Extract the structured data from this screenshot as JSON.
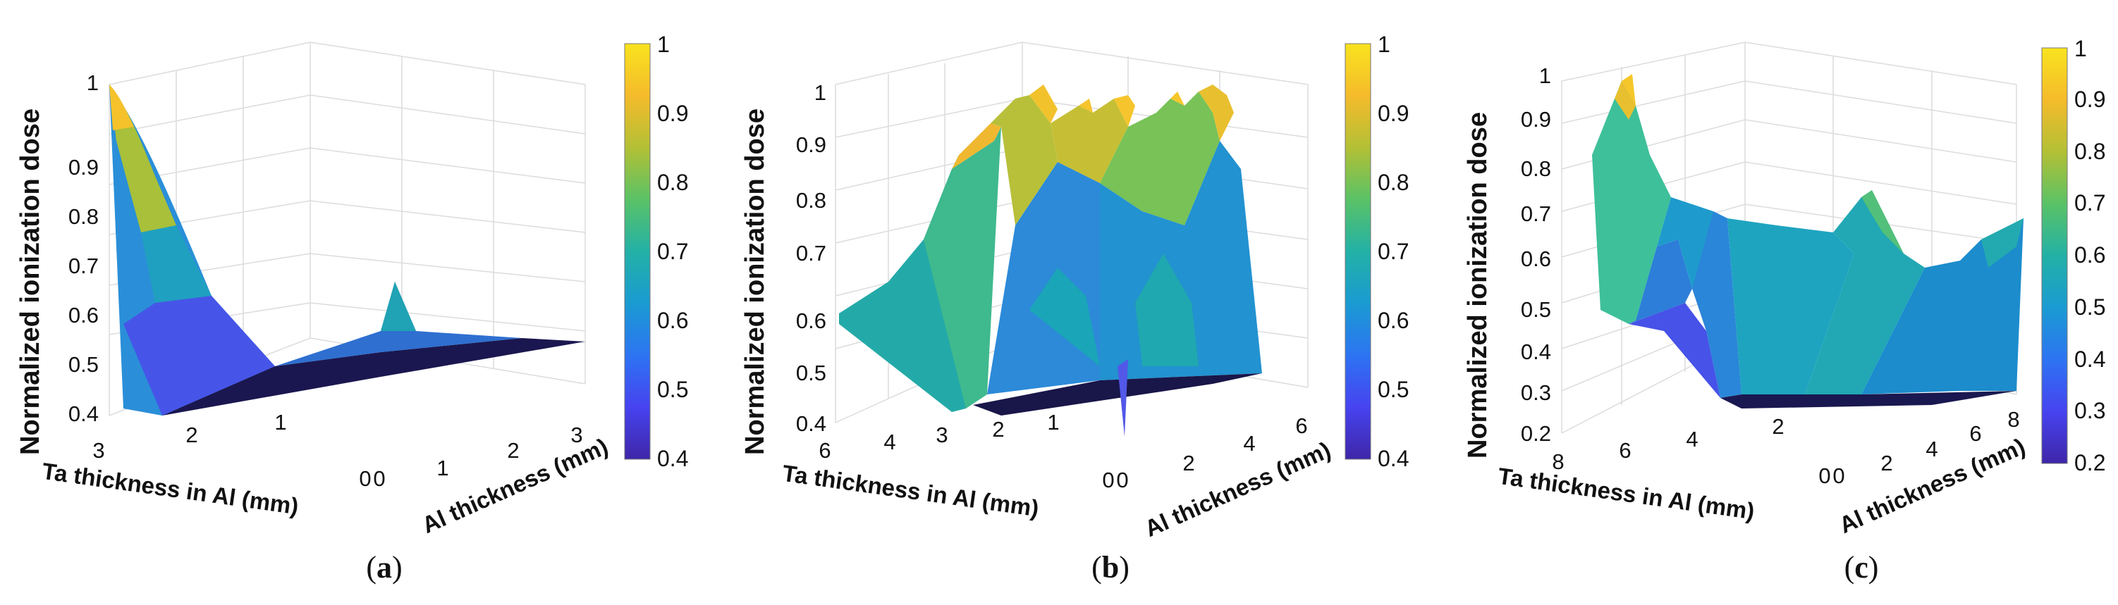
{
  "colors": {
    "colormap": [
      "#3e26a8",
      "#4743f0",
      "#2d74f2",
      "#1a9bd2",
      "#23b1a6",
      "#5ac266",
      "#b3c035",
      "#f5bb2b",
      "#f9e31e"
    ],
    "grid": "#dcdcdc",
    "axis": "#9a9a9a"
  },
  "chart_data": [
    {
      "type": "surface3d",
      "panel_label": "a",
      "zlabel": "Normalized ionization dose",
      "xlabel": "Ta thickness in Al (mm)",
      "ylabel": "Al thickness (mm)",
      "ztick_labels": [
        "0.4",
        "0.5",
        "0.6",
        "0.7",
        "0.8",
        "0.9",
        "1"
      ],
      "xtick_labels": [
        "3",
        "2",
        "1",
        "0"
      ],
      "ytick_labels": [
        "0",
        "1",
        "2",
        "3"
      ],
      "colorbar_labels": [
        "0.4",
        "0.5",
        "0.6",
        "0.7",
        "0.8",
        "0.9",
        "1"
      ],
      "zlim": [
        0.4,
        1
      ],
      "clim": [
        0.4,
        1
      ],
      "surface_features": [
        {
          "at": [
            3,
            0
          ],
          "z": 1.0
        },
        {
          "at": [
            0,
            1.3
          ],
          "z": 0.59
        },
        {
          "floor": 0.41
        }
      ]
    },
    {
      "type": "surface3d",
      "panel_label": "b",
      "zlabel": "Normalized ionization dose",
      "xlabel": "Ta thickness in Al (mm)",
      "ylabel": "Al thickness (mm)",
      "ztick_labels": [
        "0.4",
        "0.5",
        "0.6",
        "0.7",
        "0.8",
        "0.9",
        "1"
      ],
      "xtick_labels": [
        "6",
        "4",
        "3",
        "2",
        "1",
        "0"
      ],
      "ytick_labels": [
        "0",
        "2",
        "4",
        "6"
      ],
      "colorbar_labels": [
        "0.4",
        "0.5",
        "0.6",
        "0.7",
        "0.8",
        "0.9",
        "1"
      ],
      "zlim": [
        0.4,
        1
      ],
      "clim": [
        0.4,
        1
      ],
      "surface_features": [
        {
          "at": [
            6,
            0
          ],
          "z": 0.6
        },
        {
          "ridge_peaks": [
            0.91,
            0.93,
            0.92,
            0.95,
            0.99
          ]
        },
        {
          "floor": 0.42
        }
      ]
    },
    {
      "type": "surface3d",
      "panel_label": "c",
      "zlabel": "Normalized ionization dose",
      "xlabel": "Ta thickness in Al (mm)",
      "ylabel": "Al thickness (mm)",
      "ztick_labels": [
        "0.2",
        "0.3",
        "0.4",
        "0.5",
        "0.6",
        "0.7",
        "0.8",
        "0.9",
        "1"
      ],
      "xtick_labels": [
        "8",
        "6",
        "4",
        "2",
        "0"
      ],
      "ytick_labels": [
        "0",
        "2",
        "4",
        "6",
        "8"
      ],
      "colorbar_labels": [
        "0.2",
        "0.3",
        "0.4",
        "0.5",
        "0.6",
        "0.7",
        "0.8",
        "0.9",
        "1"
      ],
      "zlim": [
        0.2,
        1
      ],
      "clim": [
        0.2,
        1
      ],
      "surface_features": [
        {
          "at": [
            8,
            0
          ],
          "z": 0.93
        },
        {
          "at": [
            0,
            4
          ],
          "z": 0.68
        },
        {
          "at": [
            0,
            8
          ],
          "z": 0.66
        },
        {
          "floor": 0.28
        }
      ]
    }
  ]
}
